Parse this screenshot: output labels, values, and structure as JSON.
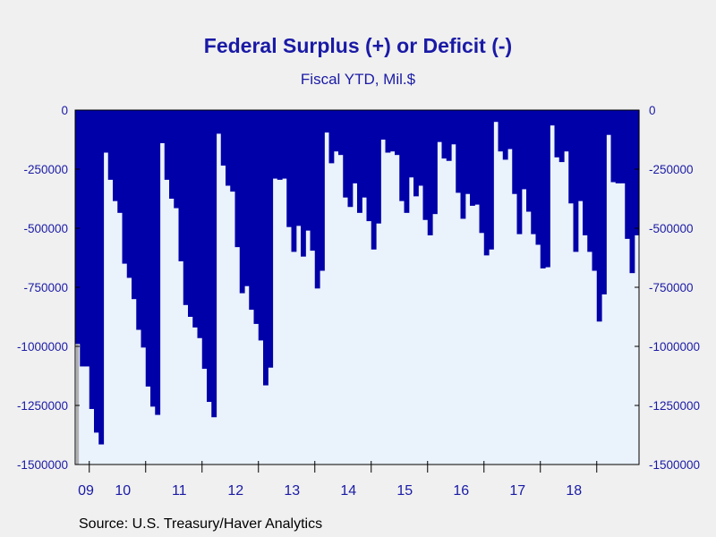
{
  "chart_data": {
    "type": "bar",
    "title": "Federal Surplus (+) or Deficit (-)",
    "subtitle": "Fiscal YTD, Mil.$",
    "source": "Source:  U.S. Treasury/Haver Analytics",
    "ylim": [
      -1500000,
      0
    ],
    "yticks": [
      0,
      -250000,
      -500000,
      -750000,
      -1000000,
      -1250000,
      -1500000
    ],
    "ytick_labels": [
      "0",
      "-250000",
      "-500000",
      "-750000",
      "-1000000",
      "-1250000",
      "-1500000"
    ],
    "years": [
      "09",
      "10",
      "11",
      "12",
      "13",
      "14",
      "15",
      "16",
      "17",
      "18"
    ],
    "fiscal_year_start_month": "Oct",
    "first_bar": "2008-10",
    "values": [
      -990000,
      -1085000,
      -1085000,
      -1265000,
      -1365000,
      -1415000,
      -180000,
      -295000,
      -385000,
      -435000,
      -650000,
      -710000,
      -800000,
      -930000,
      -1005000,
      -1170000,
      -1255000,
      -1290000,
      -140000,
      -295000,
      -375000,
      -415000,
      -640000,
      -825000,
      -875000,
      -920000,
      -965000,
      -1095000,
      -1235000,
      -1300000,
      -100000,
      -235000,
      -320000,
      -345000,
      -580000,
      -775000,
      -745000,
      -845000,
      -905000,
      -975000,
      -1165000,
      -1090000,
      -290000,
      -295000,
      -290000,
      -495000,
      -600000,
      -490000,
      -620000,
      -510000,
      -595000,
      -755000,
      -680000,
      -95000,
      -225000,
      -175000,
      -190000,
      -370000,
      -410000,
      -310000,
      -435000,
      -370000,
      -470000,
      -590000,
      -480000,
      -125000,
      -180000,
      -175000,
      -190000,
      -385000,
      -435000,
      -285000,
      -365000,
      -320000,
      -465000,
      -530000,
      -440000,
      -135000,
      -205000,
      -215000,
      -145000,
      -350000,
      -460000,
      -355000,
      -405000,
      -400000,
      -520000,
      -615000,
      -590000,
      -50000,
      -175000,
      -210000,
      -165000,
      -355000,
      -525000,
      -335000,
      -430000,
      -525000,
      -570000,
      -670000,
      -665000,
      -65000,
      -200000,
      -220000,
      -175000,
      -395000,
      -600000,
      -385000,
      -530000,
      -600000,
      -680000,
      -895000,
      -780000,
      -105000,
      -305000,
      -310000,
      -310000,
      -545000,
      -690000,
      -530000
    ]
  }
}
